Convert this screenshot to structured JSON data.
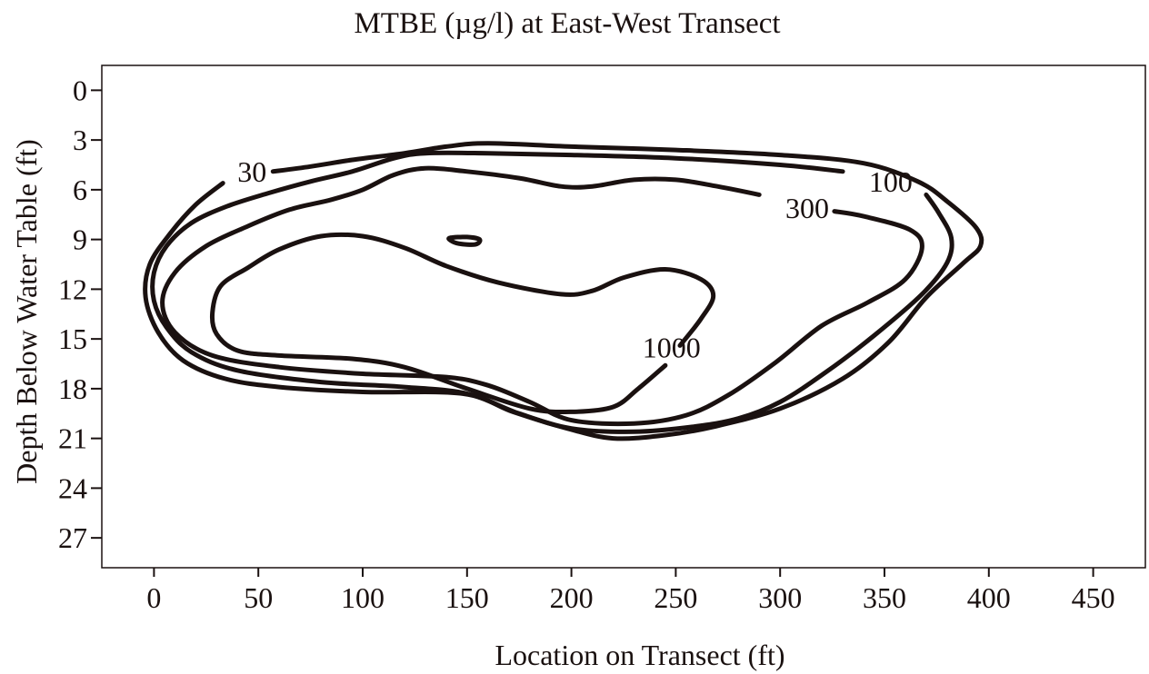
{
  "chart_data": {
    "type": "contour",
    "title": "MTBE (µg/l) at East-West Transect",
    "xlabel": "Location on Transect (ft)",
    "ylabel": "Depth Below Water Table (ft)",
    "xlim": [
      -25,
      475
    ],
    "ylim": [
      -1.5,
      28.8
    ],
    "y_inverted": true,
    "x_ticks": [
      0,
      50,
      100,
      150,
      200,
      250,
      300,
      350,
      400,
      450
    ],
    "y_ticks": [
      0,
      3,
      6,
      9,
      12,
      15,
      18,
      21,
      24,
      27
    ],
    "grid": false,
    "line_color": "#1a1110",
    "contours": [
      {
        "level": "30",
        "label_pos": [
          47,
          4.9
        ],
        "points": [
          [
            33,
            5.6
          ],
          [
            20,
            6.9
          ],
          [
            8,
            8.6
          ],
          [
            -2,
            10.5
          ],
          [
            -4,
            12.5
          ],
          [
            2,
            14.6
          ],
          [
            14,
            16.3
          ],
          [
            34,
            17.4
          ],
          [
            60,
            17.9
          ],
          [
            100,
            18.2
          ],
          [
            148,
            18.3
          ],
          [
            172,
            19.4
          ],
          [
            198,
            20.4
          ],
          [
            220,
            21
          ],
          [
            245,
            20.8
          ],
          [
            268,
            20.3
          ],
          [
            300,
            19.2
          ],
          [
            330,
            17.4
          ],
          [
            352,
            15.2
          ],
          [
            370,
            12.5
          ],
          [
            388,
            10.4
          ],
          [
            396,
            9.4
          ],
          [
            394,
            8.3
          ],
          [
            380,
            6.7
          ],
          [
            366,
            5.5
          ],
          [
            340,
            4.4
          ],
          [
            300,
            3.9
          ],
          [
            250,
            3.6
          ],
          [
            200,
            3.4
          ],
          [
            160,
            3.2
          ],
          [
            140,
            3.4
          ],
          [
            120,
            3.8
          ],
          [
            95,
            4.2
          ],
          [
            75,
            4.6
          ],
          [
            57,
            4.9
          ]
        ]
      },
      {
        "level": "100",
        "label_pos": [
          353,
          5.5
        ],
        "points": [
          [
            330,
            4.9
          ],
          [
            300,
            4.5
          ],
          [
            250,
            4.1
          ],
          [
            200,
            3.9
          ],
          [
            160,
            3.8
          ],
          [
            130,
            3.8
          ],
          [
            115,
            4.1
          ],
          [
            95,
            4.9
          ],
          [
            75,
            5.5
          ],
          [
            55,
            6.2
          ],
          [
            35,
            7
          ],
          [
            18,
            8
          ],
          [
            6,
            9.4
          ],
          [
            0,
            11
          ],
          [
            0,
            12.7
          ],
          [
            6,
            14.3
          ],
          [
            18,
            15.8
          ],
          [
            40,
            16.9
          ],
          [
            80,
            17.6
          ],
          [
            120,
            17.9
          ],
          [
            150,
            18.3
          ],
          [
            175,
            19.5
          ],
          [
            200,
            20.4
          ],
          [
            230,
            20.6
          ],
          [
            258,
            20.3
          ],
          [
            280,
            19.8
          ],
          [
            300,
            18.8
          ],
          [
            322,
            17
          ],
          [
            345,
            14.8
          ],
          [
            368,
            12.3
          ],
          [
            380,
            10.4
          ],
          [
            382,
            8.9
          ],
          [
            376,
            7.4
          ],
          [
            370,
            6.3
          ]
        ]
      },
      {
        "level": "300",
        "label_pos": [
          313,
          7.1
        ],
        "points": [
          [
            290,
            6.3
          ],
          [
            270,
            5.8
          ],
          [
            250,
            5.4
          ],
          [
            230,
            5.4
          ],
          [
            210,
            5.8
          ],
          [
            195,
            5.8
          ],
          [
            175,
            5.3
          ],
          [
            150,
            4.9
          ],
          [
            130,
            4.7
          ],
          [
            115,
            5.1
          ],
          [
            100,
            6
          ],
          [
            85,
            6.6
          ],
          [
            65,
            7.2
          ],
          [
            45,
            8.2
          ],
          [
            25,
            9.4
          ],
          [
            10,
            11
          ],
          [
            4,
            12.8
          ],
          [
            10,
            14.6
          ],
          [
            28,
            16
          ],
          [
            60,
            16.7
          ],
          [
            100,
            17.1
          ],
          [
            140,
            17.3
          ],
          [
            160,
            17.8
          ],
          [
            180,
            18.8
          ],
          [
            200,
            19.9
          ],
          [
            230,
            20.1
          ],
          [
            255,
            19.6
          ],
          [
            275,
            18.4
          ],
          [
            298,
            16.4
          ],
          [
            320,
            14.2
          ],
          [
            342,
            12.8
          ],
          [
            360,
            11.4
          ],
          [
            368,
            9.5
          ],
          [
            362,
            8.4
          ],
          [
            340,
            7.6
          ],
          [
            326,
            7.3
          ]
        ]
      },
      {
        "level": "1000",
        "label_pos": [
          248,
          15.5
        ],
        "points": [
          [
            245,
            16.6
          ],
          [
            232,
            18
          ],
          [
            220,
            19.1
          ],
          [
            200,
            19.4
          ],
          [
            180,
            19.2
          ],
          [
            150,
            18
          ],
          [
            120,
            16.7
          ],
          [
            95,
            16.2
          ],
          [
            60,
            16
          ],
          [
            40,
            15.7
          ],
          [
            30,
            14.7
          ],
          [
            28,
            13.4
          ],
          [
            32,
            11.8
          ],
          [
            45,
            10.7
          ],
          [
            60,
            9.6
          ],
          [
            80,
            8.8
          ],
          [
            100,
            8.8
          ],
          [
            120,
            9.5
          ],
          [
            140,
            10.6
          ],
          [
            165,
            11.6
          ],
          [
            195,
            12.3
          ],
          [
            210,
            12.1
          ],
          [
            225,
            11.3
          ],
          [
            245,
            10.8
          ],
          [
            262,
            11.4
          ],
          [
            268,
            12.4
          ],
          [
            262,
            13.8
          ],
          [
            252,
            15.4
          ]
        ]
      },
      {
        "level": "",
        "label_pos": null,
        "points": [
          [
            142,
            8.9
          ],
          [
            150,
            8.85
          ],
          [
            156,
            9
          ],
          [
            154,
            9.3
          ],
          [
            146,
            9.25
          ],
          [
            142,
            9.05
          ]
        ]
      }
    ]
  }
}
